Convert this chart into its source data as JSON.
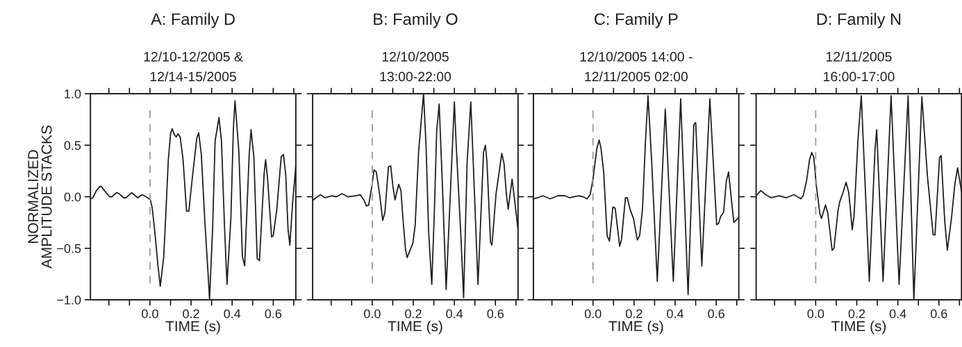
{
  "chart_data": [
    {
      "type": "line",
      "title": "A: Family D",
      "subtitle": "12/10-12/2005 &\n12/14-15/2005",
      "xlabel": "TIME (s)",
      "ylabel": "NORMALIZED\nAMPLITUDE STACKS",
      "xlim": [
        -0.29,
        0.71
      ],
      "xticks": [
        {
          "value": -0.2,
          "label": null
        },
        {
          "value": -0.1,
          "label": null
        },
        {
          "value": 0,
          "label": "0.0"
        },
        {
          "value": 0.1,
          "label": null
        },
        0.2,
        {
          "value": 0.3,
          "label": null
        },
        0.4,
        {
          "value": 0.5,
          "label": null
        },
        0.6,
        {
          "value": 0.7,
          "label": null
        }
      ],
      "ylim": [
        -1,
        1
      ],
      "yticks": [
        {
          "value": -1,
          "label": "−1.0"
        },
        {
          "value": -0.5,
          "label": "−0.5"
        },
        {
          "value": 0,
          "label": "0.0"
        },
        {
          "value": 0.5,
          "label": "0.5"
        },
        {
          "value": 1,
          "label": "1.0"
        }
      ],
      "ref_lines": [
        {
          "axis": "x",
          "value": 0,
          "color": "#999999",
          "line_style": "dashed"
        }
      ],
      "series": [
        {
          "color": "#231f20",
          "x": [
            -0.29,
            -0.278,
            -0.261,
            -0.244,
            -0.237,
            -0.222,
            -0.197,
            -0.186,
            -0.163,
            -0.15,
            -0.128,
            -0.117,
            -0.089,
            -0.078,
            -0.059,
            -0.039,
            -0.028,
            -0.011,
            0.002,
            0.011,
            0.022,
            0.039,
            0.05,
            0.067,
            0.078,
            0.089,
            0.1,
            0.108,
            0.119,
            0.128,
            0.136,
            0.147,
            0.161,
            0.178,
            0.189,
            0.206,
            0.228,
            0.237,
            0.25,
            0.267,
            0.283,
            0.29,
            0.305,
            0.317,
            0.336,
            0.348,
            0.363,
            0.375,
            0.394,
            0.406,
            0.414,
            0.433,
            0.45,
            0.461,
            0.483,
            0.492,
            0.506,
            0.522,
            0.533,
            0.556,
            0.563,
            0.572,
            0.592,
            0.6,
            0.617,
            0.639,
            0.65,
            0.661,
            0.672,
            0.681,
            0.694,
            0.71
          ],
          "values": [
            -0.02,
            -0.01,
            0.06,
            0.1,
            0.1,
            0.06,
            0.0,
            0.0,
            0.04,
            0.03,
            -0.01,
            -0.01,
            0.04,
            0.02,
            -0.01,
            0.02,
            0.01,
            -0.01,
            -0.03,
            -0.11,
            -0.31,
            -0.67,
            -0.87,
            -0.58,
            -0.13,
            0.35,
            0.61,
            0.66,
            0.6,
            0.58,
            0.61,
            0.58,
            0.36,
            -0.14,
            -0.14,
            0.18,
            0.57,
            0.62,
            0.41,
            -0.24,
            -0.75,
            -1.0,
            -0.3,
            0.54,
            0.77,
            0.54,
            -0.3,
            -0.85,
            -0.2,
            0.66,
            0.93,
            0.43,
            -0.58,
            -0.67,
            0.41,
            0.65,
            0.38,
            -0.6,
            -0.62,
            0.23,
            0.36,
            0.19,
            -0.39,
            -0.38,
            -0.13,
            0.39,
            0.41,
            0.21,
            -0.31,
            -0.47,
            -0.07,
            0.3
          ]
        }
      ]
    },
    {
      "type": "line",
      "title": "B: Family O",
      "subtitle": "12/10/2005\n13:00-22:00",
      "xlabel": "TIME (s)",
      "tick_labels": "x",
      "xlim": [
        -0.29,
        0.71
      ],
      "xticks": [
        {
          "value": -0.2,
          "label": null
        },
        {
          "value": -0.1,
          "label": null
        },
        {
          "value": 0,
          "label": "0.0"
        },
        {
          "value": 0.1,
          "label": null
        },
        0.2,
        {
          "value": 0.3,
          "label": null
        },
        0.4,
        {
          "value": 0.5,
          "label": null
        },
        0.6,
        {
          "value": 0.7,
          "label": null
        }
      ],
      "ylim": [
        -1,
        1
      ],
      "yticks": [
        {
          "value": -1,
          "label": null
        },
        {
          "value": -0.5,
          "label": null
        },
        {
          "value": 0,
          "label": null
        },
        {
          "value": 0.5,
          "label": null
        },
        {
          "value": 1,
          "label": null
        }
      ],
      "ref_lines": [
        {
          "axis": "x",
          "value": 0,
          "color": "#999999",
          "line_style": "dashed"
        }
      ],
      "series": [
        {
          "color": "#231f20",
          "x": [
            -0.286,
            -0.274,
            -0.252,
            -0.23,
            -0.197,
            -0.174,
            -0.147,
            -0.119,
            -0.08,
            -0.058,
            -0.041,
            -0.028,
            -0.017,
            -0.002,
            0.009,
            0.02,
            0.037,
            0.051,
            0.062,
            0.079,
            0.09,
            0.101,
            0.111,
            0.129,
            0.14,
            0.148,
            0.162,
            0.17,
            0.198,
            0.209,
            0.226,
            0.25,
            0.262,
            0.275,
            0.29,
            0.303,
            0.314,
            0.326,
            0.342,
            0.36,
            0.387,
            0.4,
            0.409,
            0.431,
            0.445,
            0.462,
            0.48,
            0.492,
            0.515,
            0.542,
            0.551,
            0.559,
            0.576,
            0.583,
            0.603,
            0.631,
            0.642,
            0.653,
            0.662,
            0.681,
            0.692,
            0.71
          ],
          "values": [
            -0.03,
            -0.01,
            0.02,
            -0.01,
            0.01,
            0.0,
            0.03,
            0.0,
            0.01,
            0.02,
            -0.03,
            -0.09,
            -0.08,
            0.1,
            0.26,
            0.24,
            0.01,
            -0.23,
            -0.15,
            0.29,
            0.3,
            0.1,
            -0.03,
            0.12,
            0.06,
            -0.17,
            -0.51,
            -0.59,
            -0.45,
            -0.28,
            0.44,
            1.0,
            0.5,
            -0.35,
            -0.85,
            -0.12,
            0.64,
            0.9,
            0.1,
            -0.9,
            0.33,
            0.92,
            0.5,
            -0.35,
            -0.98,
            0.33,
            0.92,
            0.33,
            -0.85,
            0.43,
            0.5,
            0.33,
            -0.44,
            -0.47,
            0.03,
            0.42,
            0.32,
            0.03,
            -0.12,
            0.17,
            -0.01,
            -0.32
          ]
        }
      ]
    },
    {
      "type": "line",
      "title": "C: Family P",
      "subtitle": "12/10/2005 14:00 -\n12/11/2005 02:00",
      "xlabel": "TIME (s)",
      "tick_labels": "x",
      "xlim": [
        -0.29,
        0.71
      ],
      "xticks": [
        {
          "value": -0.2,
          "label": null
        },
        {
          "value": -0.1,
          "label": null
        },
        {
          "value": 0,
          "label": "0.0"
        },
        {
          "value": 0.1,
          "label": null
        },
        0.2,
        {
          "value": 0.3,
          "label": null
        },
        0.4,
        {
          "value": 0.5,
          "label": null
        },
        0.6,
        {
          "value": 0.7,
          "label": null
        }
      ],
      "ylim": [
        -1,
        1
      ],
      "yticks": [
        {
          "value": -1,
          "label": null
        },
        {
          "value": -0.5,
          "label": null
        },
        {
          "value": 0,
          "label": null
        },
        {
          "value": 0.5,
          "label": null
        },
        {
          "value": 1,
          "label": null
        }
      ],
      "ref_lines": [
        {
          "axis": "x",
          "value": 0,
          "color": "#999999",
          "line_style": "dashed"
        }
      ],
      "series": [
        {
          "color": "#231f20",
          "x": [
            -0.287,
            -0.27,
            -0.244,
            -0.209,
            -0.17,
            -0.137,
            -0.114,
            -0.07,
            -0.048,
            -0.029,
            -0.014,
            0.0,
            0.019,
            0.03,
            0.039,
            0.052,
            0.069,
            0.08,
            0.097,
            0.108,
            0.13,
            0.139,
            0.158,
            0.167,
            0.18,
            0.197,
            0.216,
            0.227,
            0.241,
            0.256,
            0.268,
            0.286,
            0.313,
            0.352,
            0.391,
            0.427,
            0.463,
            0.491,
            0.5,
            0.53,
            0.569,
            0.602,
            0.611,
            0.622,
            0.636,
            0.649,
            0.66,
            0.674,
            0.686,
            0.71
          ],
          "values": [
            -0.02,
            -0.01,
            0.01,
            -0.02,
            0.01,
            0.01,
            -0.01,
            0.01,
            0.0,
            -0.02,
            0.02,
            0.17,
            0.47,
            0.55,
            0.47,
            0.24,
            -0.38,
            -0.43,
            -0.1,
            -0.11,
            -0.48,
            -0.41,
            -0.01,
            -0.01,
            -0.12,
            -0.21,
            -0.42,
            -0.38,
            -0.12,
            0.56,
            0.98,
            0.33,
            -0.82,
            0.85,
            -0.82,
            0.95,
            -0.95,
            0.7,
            0.72,
            -0.67,
            0.95,
            -0.27,
            -0.26,
            -0.19,
            -0.15,
            0.15,
            0.24,
            -0.03,
            -0.25,
            -0.2
          ]
        }
      ]
    },
    {
      "type": "line",
      "title": "D: Family N",
      "subtitle": "12/11/2005\n16:00-17:00",
      "xlabel": "TIME (s)",
      "tick_labels": "x",
      "xlim": [
        -0.29,
        0.71
      ],
      "xticks": [
        {
          "value": -0.2,
          "label": null
        },
        {
          "value": -0.1,
          "label": null
        },
        {
          "value": 0,
          "label": "0.0"
        },
        {
          "value": 0.1,
          "label": null
        },
        0.2,
        {
          "value": 0.3,
          "label": null
        },
        0.4,
        {
          "value": 0.5,
          "label": null
        },
        0.6,
        {
          "value": 0.7,
          "label": null
        }
      ],
      "ylim": [
        -1,
        1
      ],
      "yticks": [
        {
          "value": -1,
          "label": null
        },
        {
          "value": -0.5,
          "label": null
        },
        {
          "value": 0,
          "label": null
        },
        {
          "value": 0.5,
          "label": null
        },
        {
          "value": 1,
          "label": null
        }
      ],
      "ref_lines": [
        {
          "axis": "x",
          "value": 0,
          "color": "#999999",
          "line_style": "dashed"
        }
      ],
      "series": [
        {
          "color": "#231f20",
          "x": [
            -0.286,
            -0.267,
            -0.244,
            -0.217,
            -0.178,
            -0.144,
            -0.106,
            -0.072,
            -0.061,
            -0.044,
            -0.03,
            -0.019,
            -0.009,
            0.002,
            0.02,
            0.028,
            0.048,
            0.059,
            0.08,
            0.089,
            0.109,
            0.117,
            0.133,
            0.148,
            0.161,
            0.178,
            0.187,
            0.206,
            0.222,
            0.261,
            0.289,
            0.297,
            0.328,
            0.367,
            0.406,
            0.45,
            0.478,
            0.517,
            0.544,
            0.572,
            0.581,
            0.603,
            0.611,
            0.628,
            0.641,
            0.661,
            0.678,
            0.691,
            0.71
          ],
          "values": [
            0.02,
            0.06,
            0.02,
            -0.01,
            0.01,
            -0.01,
            0.02,
            -0.02,
            0.01,
            0.16,
            0.36,
            0.43,
            0.38,
            0.13,
            -0.16,
            -0.21,
            -0.08,
            -0.16,
            -0.52,
            -0.5,
            -0.13,
            -0.05,
            0.04,
            0.14,
            0.04,
            -0.32,
            -0.18,
            0.56,
            0.98,
            -0.82,
            0.47,
            0.65,
            -0.82,
            0.98,
            -0.85,
            0.98,
            -1.0,
            0.97,
            0.2,
            -0.37,
            -0.37,
            0.38,
            0.4,
            -0.23,
            -0.52,
            -0.21,
            0.13,
            0.28,
            0.05
          ]
        }
      ]
    }
  ]
}
